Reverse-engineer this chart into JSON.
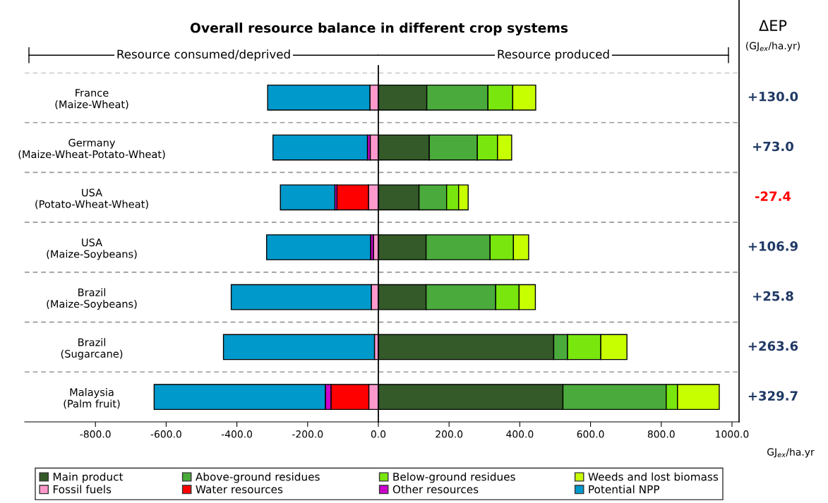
{
  "chart_data": {
    "type": "bar",
    "orientation": "horizontal",
    "stacked": true,
    "title": "Overall resource balance in different crop systems",
    "xlabel": "GJ$_{ex}$/ha.yr",
    "categories": [
      "France\n(Maize-Wheat)",
      "Germany\n(Maize-Wheat-Potato-Wheat)",
      "USA\n(Potato-Wheat-Wheat)",
      "USA\n(Maize-Soybeans)",
      "Brazil\n(Maize-Soybeans)",
      "Brazil\n(Sugarcane)",
      "Malaysia\n(Palm fruit)"
    ],
    "series": [
      {
        "name": "Main product",
        "color": "#335a28",
        "values": [
          137,
          144,
          115,
          135,
          135,
          496,
          522
        ]
      },
      {
        "name": "Above-ground residues",
        "color": "#4aaa3c",
        "values": [
          173,
          136,
          78,
          181,
          197,
          39,
          292
        ]
      },
      {
        "name": "Below-ground residues",
        "color": "#79e60e",
        "values": [
          70,
          57,
          34,
          66,
          66,
          94,
          32
        ]
      },
      {
        "name": "Weeds and lost biomass",
        "color": "#c8ff00",
        "values": [
          65,
          40,
          27,
          43,
          46,
          74,
          118
        ]
      },
      {
        "name": "Fossil fuels",
        "color": "#ff99cc",
        "values": [
          -24,
          -23,
          -28,
          -14,
          -20,
          -11,
          -27
        ]
      },
      {
        "name": "Water resources",
        "color": "#ff0000",
        "values": [
          null,
          null,
          -89,
          null,
          null,
          null,
          -107
        ]
      },
      {
        "name": "Other resources",
        "color": "#cc00cc",
        "values": [
          null,
          -8,
          -6,
          -8,
          null,
          null,
          -16
        ]
      },
      {
        "name": "Potential NPP",
        "color": "#0099cc",
        "values": [
          -289,
          -267,
          -154,
          -294,
          -396,
          -427,
          -484
        ]
      }
    ],
    "xlim": [
      -1000,
      1020
    ],
    "xticks": [
      {
        "value": -800,
        "label": "-800.0"
      },
      {
        "value": -600,
        "label": "-600.0"
      },
      {
        "value": -400,
        "label": "-400.0"
      },
      {
        "value": -200,
        "label": "-200.0"
      },
      {
        "value": 0,
        "label": "0.0"
      },
      {
        "value": 200,
        "label": "200.0"
      },
      {
        "value": 400,
        "label": "400.0"
      },
      {
        "value": 600,
        "label": "600.0"
      },
      {
        "value": 800,
        "label": "800.0"
      },
      {
        "value": 1000,
        "label": "1000.0"
      }
    ],
    "ref_lines": [
      {
        "axis": "x",
        "value": 0,
        "color": "#000000"
      }
    ],
    "grid": "y",
    "legend": "bottom",
    "annotations": [
      "Resource consumed/deprived",
      "Resource produced",
      "ΔEP",
      "(GJ$_{ex}$/ha.yr)",
      "+130.0",
      "+73.0",
      "-27.4",
      "+106.9",
      "+25.8",
      "+263.6",
      "+329.7"
    ]
  }
}
